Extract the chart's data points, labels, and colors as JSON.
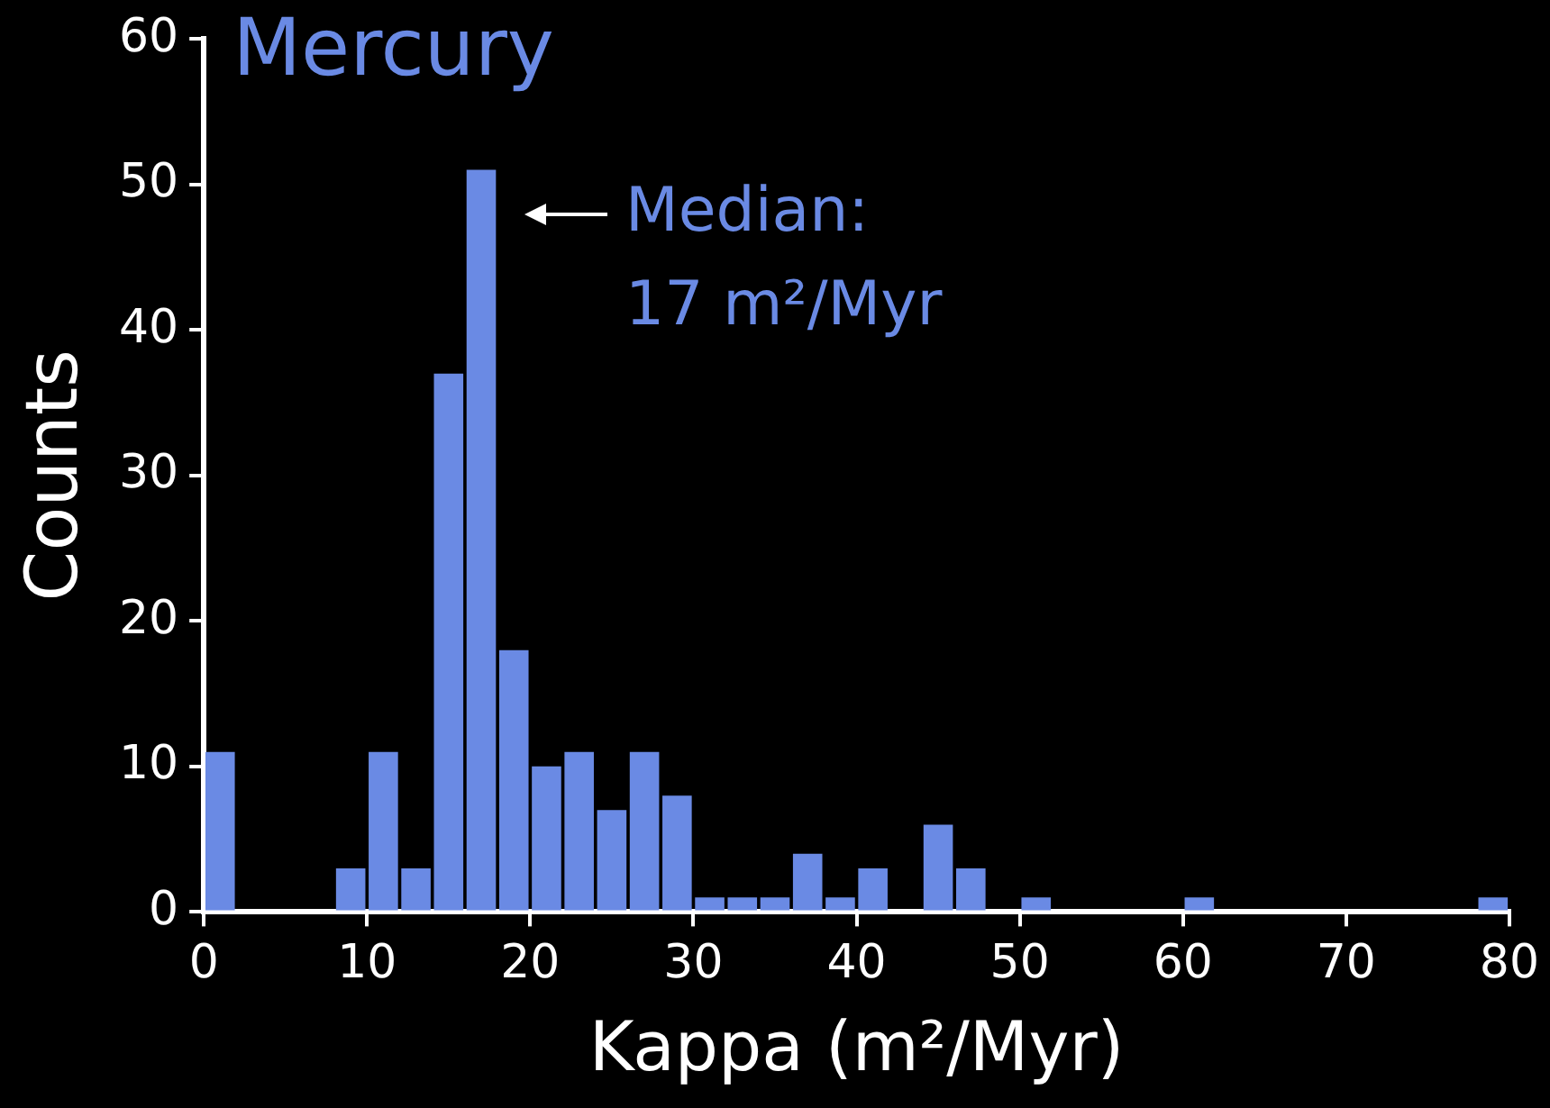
{
  "chart_data": {
    "type": "histogram",
    "title": "Mercury",
    "xlabel": "Kappa (m²/Myr)",
    "ylabel": "Counts",
    "bins": [
      0,
      2,
      4,
      6,
      8,
      10,
      12,
      14,
      16,
      18,
      20,
      22,
      24,
      26,
      28,
      30,
      32,
      34,
      36,
      38,
      40,
      42,
      44,
      46,
      48,
      50,
      52,
      54,
      56,
      58,
      60,
      62,
      64,
      66,
      68,
      70,
      72,
      74,
      76,
      78,
      80
    ],
    "values": [
      11,
      0,
      0,
      0,
      3,
      11,
      3,
      37,
      51,
      18,
      10,
      11,
      7,
      11,
      8,
      1,
      1,
      1,
      4,
      1,
      3,
      0,
      6,
      3,
      0,
      1,
      0,
      0,
      0,
      0,
      1,
      0,
      0,
      0,
      0,
      0,
      0,
      0,
      0,
      1
    ],
    "color": "#6a8ae4",
    "xlim": [
      0,
      80
    ],
    "xticks": [
      0,
      10,
      20,
      30,
      40,
      50,
      60,
      70,
      80
    ],
    "ylim": [
      0,
      60
    ],
    "yticks": [
      0,
      10,
      20,
      30,
      40,
      50,
      60
    ],
    "annotations": [
      {
        "text": "Median: 17 m²/Myr",
        "x": 17,
        "y": 51
      }
    ],
    "grid": false,
    "legend": false
  }
}
